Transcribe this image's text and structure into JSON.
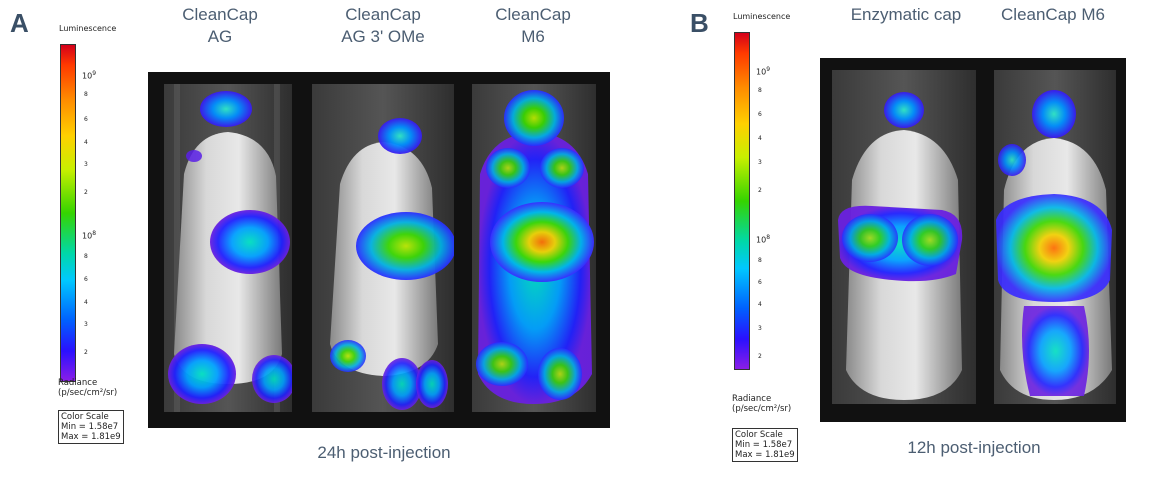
{
  "panel_a": {
    "letter": "A",
    "columns": [
      {
        "line1": "CleanCap",
        "line2": "AG"
      },
      {
        "line1": "CleanCap",
        "line2": "AG 3' OMe"
      },
      {
        "line1": "CleanCap",
        "line2": "M6"
      }
    ],
    "caption": "24h post-injection",
    "scale": {
      "title": "Luminescence",
      "major_top_base": "10",
      "major_top_exp": "9",
      "major_bottom_base": "10",
      "major_bottom_exp": "8",
      "ticks_top": [
        "8",
        "6",
        "4",
        "3",
        "2"
      ],
      "ticks_bottom": [
        "8",
        "6",
        "4",
        "3",
        "2"
      ],
      "radiance_line1": "Radiance",
      "radiance_line2": "(p/sec/cm²/sr)",
      "color_scale": "Color Scale",
      "min": "Min = 1.58e7",
      "max": "Max = 1.81e9"
    }
  },
  "panel_b": {
    "letter": "B",
    "columns": [
      {
        "line1": "Enzymatic cap"
      },
      {
        "line1": "CleanCap M6"
      }
    ],
    "caption": "12h post-injection",
    "scale": {
      "title": "Luminescence",
      "major_top_base": "10",
      "major_top_exp": "9",
      "major_bottom_base": "10",
      "major_bottom_exp": "8",
      "ticks_top": [
        "8",
        "6",
        "4",
        "3",
        "2"
      ],
      "ticks_bottom": [
        "8",
        "6",
        "4",
        "3",
        "2"
      ],
      "radiance_line1": "Radiance",
      "radiance_line2": "(p/sec/cm²/sr)",
      "color_scale": "Color Scale",
      "min": "Min = 1.58e7",
      "max": "Max = 1.81e9"
    }
  }
}
